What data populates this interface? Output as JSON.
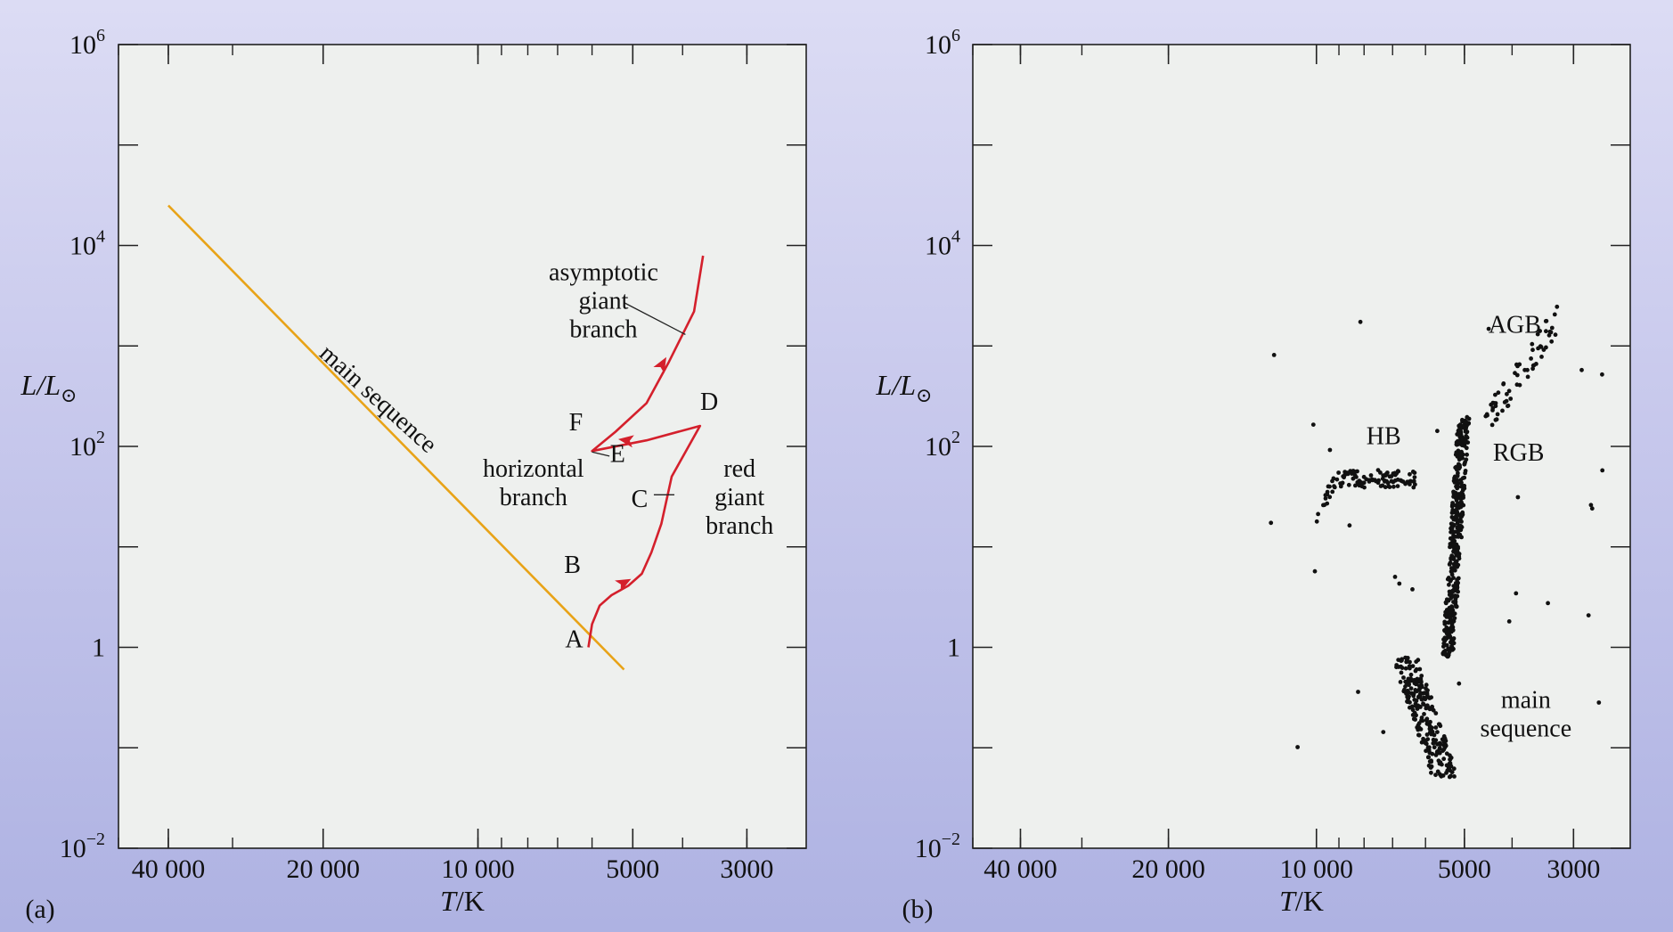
{
  "colors": {
    "panel_bg": "#eef0ee",
    "main_sequence_line": "#e8a317",
    "evolution_track": "#d4202c",
    "points": "#111111"
  },
  "chart_data": [
    {
      "type": "line",
      "panel": "(a)",
      "xlabel_main": "T",
      "xlabel_unit": "/K",
      "ylabel_main": "L",
      "ylabel_sub": "/L",
      "ylabel_symbol": "⊙",
      "x_scale": "log-reversed",
      "y_scale": "log",
      "xlim": [
        50000,
        2300
      ],
      "ylim": [
        0.01,
        1000000
      ],
      "grid": false,
      "x_ticks": [
        40000,
        20000,
        10000,
        5000,
        3000
      ],
      "x_tick_labels": [
        "40 000",
        "20 000",
        "10 000",
        "5000",
        "3000"
      ],
      "y_ticks": [
        {
          "main": "10",
          "exp": "6"
        },
        {
          "main": "10",
          "exp": "4"
        },
        {
          "main": "10",
          "exp": "2"
        },
        {
          "main": "1",
          "exp": ""
        },
        {
          "main": "10",
          "exp": "−2"
        }
      ],
      "series": [
        {
          "role": "main-sequence",
          "points": [
            [
              40000,
              25000
            ],
            [
              5200,
              0.6
            ]
          ]
        },
        {
          "role": "evolution-track",
          "points": [
            [
              6100,
              1.0
            ],
            [
              6000,
              1.7
            ],
            [
              5800,
              2.6
            ],
            [
              5500,
              3.3
            ],
            [
              5100,
              4.1
            ],
            [
              4800,
              5.4
            ],
            [
              4600,
              8.8
            ],
            [
              4400,
              17
            ],
            [
              4200,
              50
            ],
            [
              3700,
              160
            ],
            [
              4700,
              115
            ],
            [
              6000,
              90
            ],
            [
              5400,
              140
            ],
            [
              4700,
              270
            ],
            [
              4250,
              700
            ],
            [
              3800,
              2200
            ],
            [
              3650,
              7900
            ]
          ]
        }
      ],
      "annotations": [
        {
          "text": "A",
          "x": 6500,
          "y": 1.0
        },
        {
          "text": "B",
          "x": 6550,
          "y": 5.5
        },
        {
          "text": "C",
          "x": 4850,
          "y": 25
        },
        {
          "text": "D",
          "x": 3550,
          "y": 230
        },
        {
          "text": "E",
          "x": 5350,
          "y": 70
        },
        {
          "text": "F",
          "x": 6450,
          "y": 145
        },
        {
          "lines": [
            "asymptotic",
            "giant",
            "branch"
          ],
          "x": 5700,
          "y": 4500
        },
        {
          "lines": [
            "horizontal",
            "branch"
          ],
          "x": 7800,
          "y": 50
        },
        {
          "lines": [
            "red",
            "giant",
            "branch"
          ],
          "x": 3100,
          "y": 50
        },
        {
          "text": "main sequence",
          "x": 16000,
          "y": 260,
          "rotate_deg": 42
        }
      ],
      "arrows": [
        {
          "x": 5200,
          "y": 4.4,
          "angle_deg": -28
        },
        {
          "x": 5150,
          "y": 115,
          "angle_deg": 188
        },
        {
          "x": 4380,
          "y": 660,
          "angle_deg": -60
        }
      ],
      "leaders": [
        {
          "from": [
            5200,
            2700
          ],
          "to": [
            3950,
            1300
          ]
        },
        {
          "from": [
            5550,
            80
          ],
          "to": [
            6000,
            88
          ]
        },
        {
          "from": [
            4550,
            33
          ],
          "to": [
            4150,
            33
          ]
        }
      ]
    },
    {
      "type": "scatter",
      "panel": "(b)",
      "xlabel_main": "T",
      "xlabel_unit": "/K",
      "ylabel_main": "L",
      "ylabel_sub": "/L",
      "ylabel_symbol": "⊙",
      "x_scale": "log-reversed",
      "y_scale": "log",
      "xlim": [
        50000,
        2300
      ],
      "ylim": [
        0.01,
        1000000
      ],
      "grid": false,
      "x_ticks": [
        40000,
        20000,
        10000,
        5000,
        3000
      ],
      "x_tick_labels": [
        "40 000",
        "20 000",
        "10 000",
        "5000",
        "3000"
      ],
      "y_ticks": [
        {
          "main": "10",
          "exp": "6"
        },
        {
          "main": "10",
          "exp": "4"
        },
        {
          "main": "10",
          "exp": "2"
        },
        {
          "main": "1",
          "exp": ""
        },
        {
          "main": "10",
          "exp": "−2"
        }
      ],
      "groups": [
        {
          "role": "main-sequence",
          "count": 240,
          "x_range": [
            7200,
            5100
          ],
          "y_range": [
            0.05,
            0.8
          ]
        },
        {
          "role": "rgb",
          "count": 420,
          "x_range": [
            5700,
            4600
          ],
          "y_range": [
            0.8,
            200
          ]
        },
        {
          "role": "hb",
          "count": 110,
          "x_range": [
            10000,
            6300
          ],
          "y_range": [
            30,
            80
          ]
        },
        {
          "role": "agb",
          "count": 60,
          "x_range": [
            4600,
            3200
          ],
          "y_range": [
            150,
            2000
          ]
        },
        {
          "role": "outliers",
          "count": 30,
          "x_range": [
            13000,
            2500
          ],
          "y_range": [
            0.1,
            3000
          ]
        }
      ],
      "annotations": [
        {
          "text": "AGB",
          "x": 3950,
          "y": 1350
        },
        {
          "text": "HB",
          "x": 7300,
          "y": 105
        },
        {
          "text": "RGB",
          "x": 3880,
          "y": 72
        },
        {
          "lines": [
            "main",
            "sequence"
          ],
          "x": 3750,
          "y": 0.25
        }
      ]
    }
  ]
}
